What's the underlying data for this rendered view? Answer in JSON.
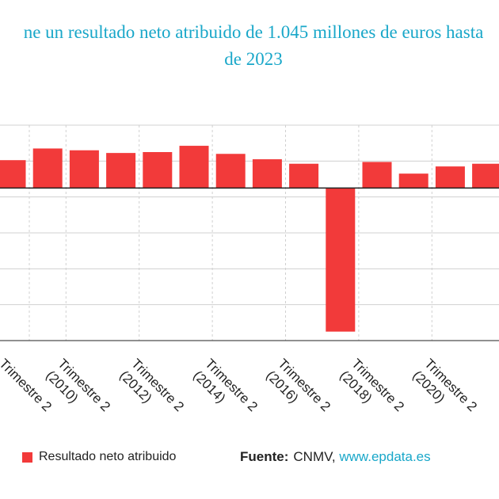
{
  "title_line1": "ne un resultado neto atribuido de 1.045 millones de euros hasta",
  "title_line2": "de 2023",
  "legend": {
    "label": "Resultado neto atribuido",
    "color": "#f23a3a"
  },
  "source": {
    "label": "Fuente:",
    "text": "CNMV,",
    "link": "www.epdata.es"
  },
  "colors": {
    "bar": "#f23a3a",
    "grid": "#d0d0d0",
    "axis": "#222222",
    "title": "#19a7c9"
  },
  "chart_data": {
    "type": "bar",
    "grid": true,
    "legend_position": "bottom-left",
    "ylim": [
      -8500,
      3500
    ],
    "x_tick_labels": [
      {
        "prefix": "Trimestre 2",
        "year": ""
      },
      {
        "prefix": "Trimestre 2",
        "year": "(2010)"
      },
      {
        "prefix": "Trimestre 2",
        "year": "(2012)"
      },
      {
        "prefix": "Trimestre 2",
        "year": "(2014)"
      },
      {
        "prefix": "Trimestre 2",
        "year": "(2016)"
      },
      {
        "prefix": "Trimestre 2",
        "year": "(2018)"
      },
      {
        "prefix": "Trimestre 2",
        "year": "(2020)"
      },
      {
        "prefix": "Trimestre 2",
        "year": ""
      }
    ],
    "series": [
      {
        "name": "Resultado neto atribuido",
        "values": [
          1550,
          2200,
          2100,
          1950,
          2000,
          2350,
          1900,
          1600,
          1350,
          -8000,
          1450,
          800,
          1200,
          1350
        ]
      }
    ]
  }
}
